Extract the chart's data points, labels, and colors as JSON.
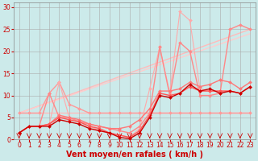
{
  "background_color": "#cceaea",
  "grid_color": "#aaaaaa",
  "xlabel": "Vent moyen/en rafales ( km/h )",
  "xlabel_color": "#cc0000",
  "xlabel_fontsize": 7,
  "yticks": [
    0,
    5,
    10,
    15,
    20,
    25,
    30
  ],
  "xticks": [
    0,
    1,
    2,
    3,
    4,
    5,
    6,
    7,
    8,
    9,
    10,
    11,
    12,
    13,
    14,
    15,
    16,
    17,
    18,
    19,
    20,
    21,
    22,
    23
  ],
  "tick_color": "#cc0000",
  "tick_fontsize": 5.5,
  "lines": [
    {
      "x": [
        0,
        23
      ],
      "y": [
        6.0,
        6.0
      ],
      "color": "#ffbbbb",
      "lw": 1.0,
      "marker": null,
      "zorder": 1
    },
    {
      "x": [
        0,
        23
      ],
      "y": [
        6.0,
        25.0
      ],
      "color": "#ffbbbb",
      "lw": 1.0,
      "marker": null,
      "zorder": 1
    },
    {
      "x": [
        0,
        23
      ],
      "y": [
        6.0,
        24.0
      ],
      "color": "#ffcccc",
      "lw": 1.0,
      "marker": null,
      "zorder": 1
    },
    {
      "x": [
        0,
        1,
        2,
        3,
        4,
        5,
        6,
        7,
        8,
        9,
        10,
        11,
        12,
        13,
        14,
        15,
        16,
        17,
        18,
        19,
        20,
        21,
        22,
        23
      ],
      "y": [
        6.0,
        6.0,
        6.0,
        10.5,
        13.0,
        8.0,
        7.0,
        6.0,
        6.0,
        6.0,
        6.0,
        6.0,
        6.0,
        6.0,
        6.0,
        6.0,
        6.0,
        6.0,
        6.0,
        6.0,
        6.0,
        6.0,
        6.0,
        6.0
      ],
      "color": "#ff9999",
      "lw": 1.0,
      "marker": "D",
      "markersize": 2.0,
      "zorder": 2
    },
    {
      "note": "pink series - peaks ~x=3 ~10.5, ~x=14 ~21, ~x=16 ~22",
      "x": [
        0,
        1,
        2,
        3,
        4,
        5,
        6,
        7,
        8,
        9,
        10,
        11,
        12,
        13,
        14,
        15,
        16,
        17,
        18,
        19,
        20,
        21,
        22,
        23
      ],
      "y": [
        1.5,
        3.0,
        3.0,
        10.5,
        5.0,
        5.0,
        4.0,
        3.5,
        3.0,
        2.5,
        2.0,
        1.5,
        3.0,
        6.0,
        21.0,
        10.0,
        22.0,
        20.0,
        10.0,
        10.0,
        10.5,
        25.0,
        26.0,
        25.0
      ],
      "color": "#ff8888",
      "lw": 1.0,
      "marker": "D",
      "markersize": 2.0,
      "zorder": 3
    },
    {
      "x": [
        0,
        1,
        2,
        3,
        4,
        5,
        6,
        7,
        8,
        9,
        10,
        11,
        12,
        13,
        14,
        15,
        16,
        17,
        18,
        19,
        20,
        21,
        22,
        23
      ],
      "y": [
        1.5,
        3.0,
        3.0,
        3.5,
        5.0,
        4.5,
        4.0,
        3.0,
        2.5,
        1.5,
        1.0,
        0.5,
        2.0,
        5.5,
        10.5,
        10.0,
        10.5,
        12.0,
        11.0,
        11.0,
        11.0,
        11.0,
        10.5,
        12.0
      ],
      "color": "#ff5555",
      "lw": 1.0,
      "marker": "D",
      "markersize": 2.0,
      "zorder": 4
    },
    {
      "x": [
        0,
        1,
        2,
        3,
        4,
        5,
        6,
        7,
        8,
        9,
        10,
        11,
        12,
        13,
        14,
        15,
        16,
        17,
        18,
        19,
        20,
        21,
        22,
        23
      ],
      "y": [
        1.5,
        3.0,
        3.0,
        3.0,
        4.5,
        4.0,
        3.5,
        2.5,
        2.0,
        1.5,
        0.5,
        0.2,
        1.5,
        5.0,
        10.0,
        9.5,
        10.5,
        12.5,
        11.0,
        11.5,
        10.5,
        11.0,
        10.5,
        12.0
      ],
      "color": "#cc0000",
      "lw": 1.0,
      "marker": "D",
      "markersize": 2.0,
      "zorder": 5
    },
    {
      "x": [
        0,
        1,
        2,
        3,
        4,
        5,
        6,
        7,
        8,
        9,
        10,
        11,
        12,
        13,
        14,
        15,
        16,
        17,
        18,
        19,
        20,
        21,
        22,
        23
      ],
      "y": [
        1.5,
        3.0,
        3.0,
        3.5,
        13.0,
        5.0,
        4.0,
        3.0,
        2.0,
        1.5,
        1.0,
        0.5,
        2.5,
        11.5,
        21.0,
        10.5,
        29.0,
        27.0,
        11.5,
        11.0,
        11.0,
        11.0,
        10.5,
        12.0
      ],
      "color": "#ffaaaa",
      "lw": 0.8,
      "marker": "D",
      "markersize": 2.0,
      "zorder": 2
    },
    {
      "x": [
        0,
        1,
        2,
        3,
        4,
        5,
        6,
        7,
        8,
        9,
        10,
        11,
        12,
        13,
        14,
        15,
        16,
        17,
        18,
        19,
        20,
        21,
        22,
        23
      ],
      "y": [
        1.5,
        3.0,
        3.0,
        3.5,
        5.5,
        5.0,
        4.5,
        3.5,
        3.0,
        2.5,
        2.5,
        3.0,
        4.5,
        7.0,
        11.0,
        11.0,
        11.5,
        13.0,
        12.0,
        12.5,
        13.5,
        13.0,
        11.5,
        13.0
      ],
      "color": "#ff7777",
      "lw": 1.0,
      "marker": "D",
      "markersize": 2.0,
      "zorder": 3
    }
  ],
  "arrow_color": "#cc0000",
  "xlim": [
    -0.5,
    23.5
  ],
  "ylim": [
    0,
    31
  ]
}
